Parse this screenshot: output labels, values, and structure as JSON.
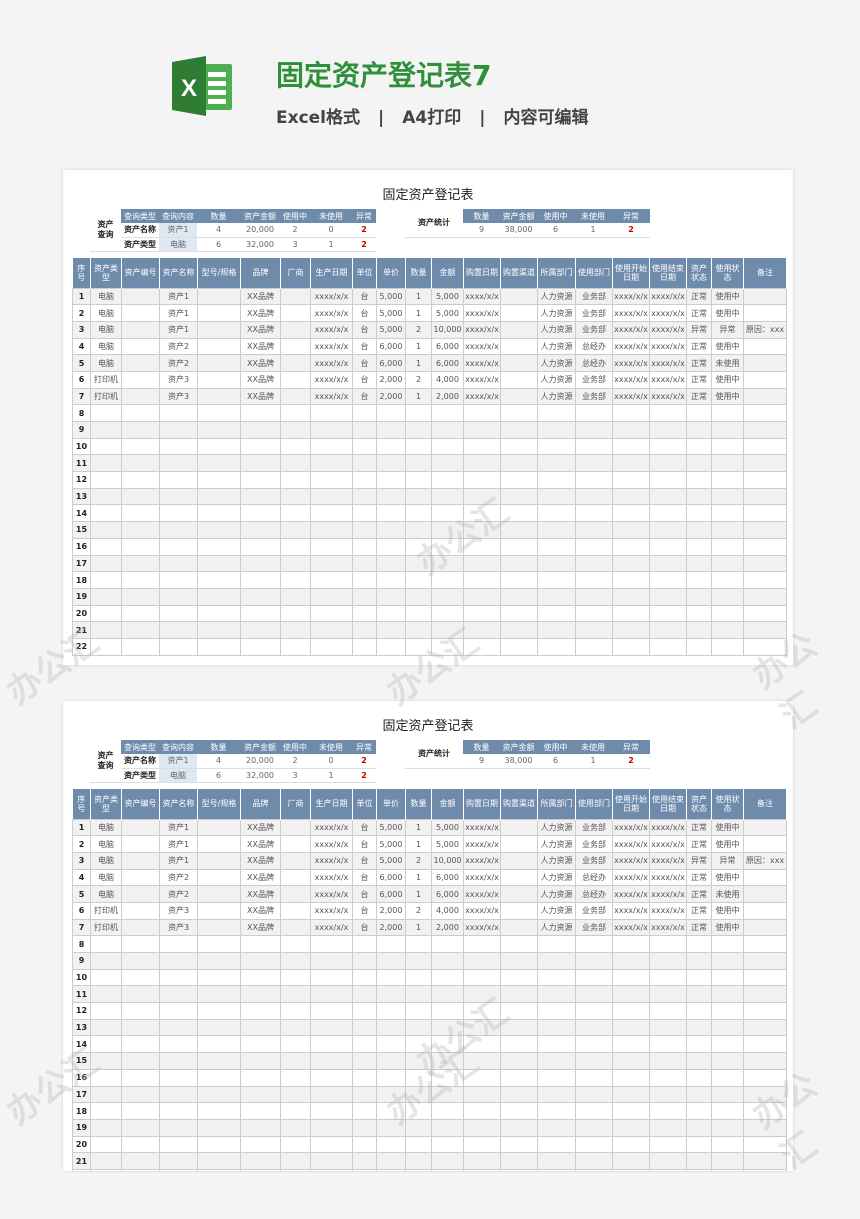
{
  "header": {
    "title": "固定资产登记表7",
    "subtitle": [
      "Excel格式",
      "|",
      "A4打印",
      "|",
      "内容可编辑"
    ],
    "logo_letter": "X",
    "brand_color": "#2f8f3a"
  },
  "sheet": {
    "title": "固定资产登记表",
    "query": {
      "label": "资产查询",
      "headers": [
        "查询类型",
        "查询内容",
        "数量",
        "资产金额",
        "使用中",
        "未使用",
        "异常"
      ],
      "rows": [
        [
          "资产名称",
          "资产1",
          "4",
          "20,000",
          "2",
          "0",
          "2"
        ],
        [
          "资产类型",
          "电脑",
          "6",
          "32,000",
          "3",
          "1",
          "2"
        ]
      ]
    },
    "stats": {
      "label": "资产统计",
      "headers": [
        "数量",
        "资产金额",
        "使用中",
        "未使用",
        "异常"
      ],
      "values": [
        "9",
        "38,000",
        "6",
        "1",
        "2"
      ]
    },
    "columns": [
      "序号",
      "资产类型",
      "资产编号",
      "资产名称",
      "型号/规格",
      "品牌",
      "厂商",
      "生产日期",
      "单位",
      "单价",
      "数量",
      "金额",
      "购置日期",
      "购置渠道",
      "所属部门",
      "使用部门",
      "使用开始日期",
      "使用结束日期",
      "资产状态",
      "使用状态",
      "备注"
    ],
    "rows": [
      [
        "1",
        "电脑",
        "",
        "资产1",
        "",
        "XX品牌",
        "",
        "xxxx/x/x",
        "台",
        "5,000",
        "1",
        "5,000",
        "xxxx/x/x",
        "",
        "人力资源",
        "业务部",
        "xxxx/x/x",
        "xxxx/x/x",
        "正常",
        "使用中",
        ""
      ],
      [
        "2",
        "电脑",
        "",
        "资产1",
        "",
        "XX品牌",
        "",
        "xxxx/x/x",
        "台",
        "5,000",
        "1",
        "5,000",
        "xxxx/x/x",
        "",
        "人力资源",
        "业务部",
        "xxxx/x/x",
        "xxxx/x/x",
        "正常",
        "使用中",
        ""
      ],
      [
        "3",
        "电脑",
        "",
        "资产1",
        "",
        "XX品牌",
        "",
        "xxxx/x/x",
        "台",
        "5,000",
        "2",
        "10,000",
        "xxxx/x/x",
        "",
        "人力资源",
        "业务部",
        "xxxx/x/x",
        "xxxx/x/x",
        "异常",
        "异常",
        "原因：xxx"
      ],
      [
        "4",
        "电脑",
        "",
        "资产2",
        "",
        "XX品牌",
        "",
        "xxxx/x/x",
        "台",
        "6,000",
        "1",
        "6,000",
        "xxxx/x/x",
        "",
        "人力资源",
        "总经办",
        "xxxx/x/x",
        "xxxx/x/x",
        "正常",
        "使用中",
        ""
      ],
      [
        "5",
        "电脑",
        "",
        "资产2",
        "",
        "XX品牌",
        "",
        "xxxx/x/x",
        "台",
        "6,000",
        "1",
        "6,000",
        "xxxx/x/x",
        "",
        "人力资源",
        "总经办",
        "xxxx/x/x",
        "xxxx/x/x",
        "正常",
        "未使用",
        ""
      ],
      [
        "6",
        "打印机",
        "",
        "资产3",
        "",
        "XX品牌",
        "",
        "xxxx/x/x",
        "台",
        "2,000",
        "2",
        "4,000",
        "xxxx/x/x",
        "",
        "人力资源",
        "业务部",
        "xxxx/x/x",
        "xxxx/x/x",
        "正常",
        "使用中",
        ""
      ],
      [
        "7",
        "打印机",
        "",
        "资产3",
        "",
        "XX品牌",
        "",
        "xxxx/x/x",
        "台",
        "2,000",
        "1",
        "2,000",
        "xxxx/x/x",
        "",
        "人力资源",
        "业务部",
        "xxxx/x/x",
        "xxxx/x/x",
        "正常",
        "使用中",
        ""
      ]
    ],
    "empty_row_numbers": [
      "8",
      "9",
      "10",
      "11",
      "12",
      "13",
      "14",
      "15",
      "16",
      "17",
      "18",
      "19",
      "20",
      "21",
      "22"
    ]
  },
  "watermark": "办公汇",
  "colors": {
    "header_fill": "#6f8bac",
    "alert": "#cc0000",
    "query_value_fill": "#dde8f3"
  }
}
